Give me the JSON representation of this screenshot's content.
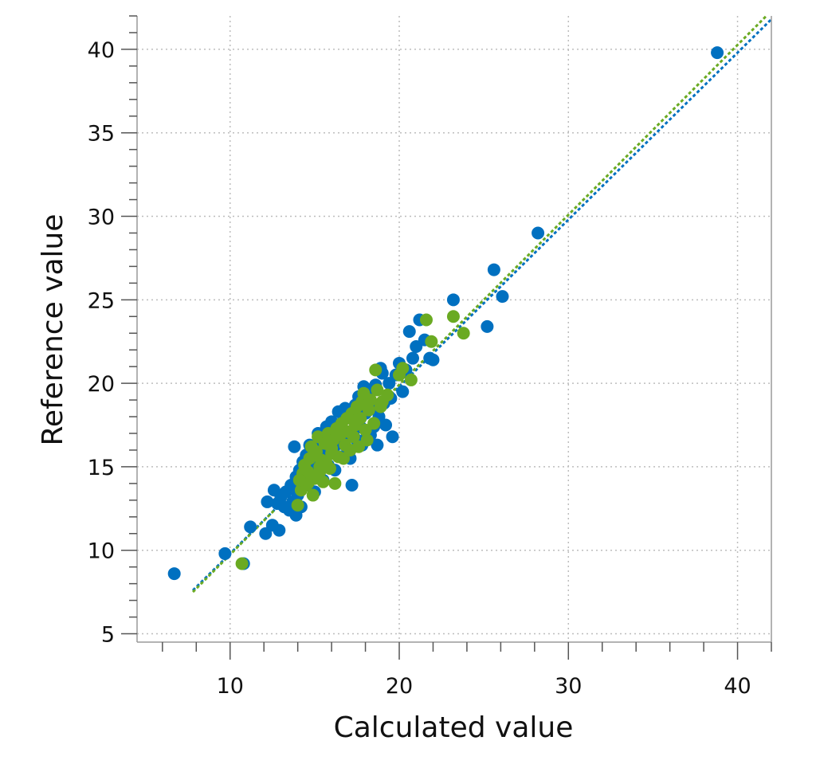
{
  "chart_data": {
    "type": "scatter",
    "title": "",
    "xlabel": "Calculated value",
    "ylabel": "Reference value",
    "xlim": [
      4.5,
      42
    ],
    "ylim": [
      4.5,
      42
    ],
    "x_ticks": [
      10,
      20,
      30,
      40
    ],
    "x_tick_labels": [
      "10",
      "20",
      "30",
      "40"
    ],
    "y_ticks": [
      5,
      10,
      15,
      20,
      25,
      30,
      35,
      40
    ],
    "y_tick_labels": [
      "5",
      "10",
      "15",
      "20",
      "25",
      "30",
      "35",
      "40"
    ],
    "x_minor_step": 2,
    "y_minor_step": 1,
    "grid": true,
    "legend": "none",
    "series": [
      {
        "color": "#0070C0",
        "points": [
          [
            6.7,
            8.6
          ],
          [
            9.7,
            9.8
          ],
          [
            10.8,
            9.2
          ],
          [
            11.2,
            11.4
          ],
          [
            12.1,
            11.0
          ],
          [
            12.2,
            12.9
          ],
          [
            12.5,
            11.5
          ],
          [
            12.6,
            13.6
          ],
          [
            12.8,
            12.8
          ],
          [
            12.9,
            11.2
          ],
          [
            13.0,
            13.2
          ],
          [
            13.2,
            12.6
          ],
          [
            13.3,
            13.5
          ],
          [
            13.5,
            12.4
          ],
          [
            13.6,
            13.9
          ],
          [
            13.7,
            12.9
          ],
          [
            13.8,
            16.2
          ],
          [
            13.9,
            14.4
          ],
          [
            13.9,
            12.1
          ],
          [
            14.0,
            13.3
          ],
          [
            14.1,
            14.8
          ],
          [
            14.2,
            13.7
          ],
          [
            14.3,
            15.3
          ],
          [
            14.4,
            14.0
          ],
          [
            14.5,
            15.7
          ],
          [
            14.6,
            13.9
          ],
          [
            14.7,
            16.3
          ],
          [
            14.8,
            14.6
          ],
          [
            14.9,
            15.0
          ],
          [
            15.0,
            16.1
          ],
          [
            15.1,
            14.4
          ],
          [
            15.2,
            17.0
          ],
          [
            15.3,
            15.3
          ],
          [
            15.4,
            16.5
          ],
          [
            15.5,
            14.2
          ],
          [
            15.6,
            15.8
          ],
          [
            15.7,
            17.4
          ],
          [
            15.8,
            15.1
          ],
          [
            15.9,
            16.3
          ],
          [
            16.0,
            17.7
          ],
          [
            16.1,
            16.0
          ],
          [
            16.2,
            14.8
          ],
          [
            16.3,
            17.2
          ],
          [
            16.4,
            18.3
          ],
          [
            16.5,
            16.4
          ],
          [
            16.6,
            15.6
          ],
          [
            16.7,
            17.8
          ],
          [
            16.8,
            18.5
          ],
          [
            16.9,
            16.9
          ],
          [
            17.0,
            15.9
          ],
          [
            17.1,
            15.5
          ],
          [
            17.2,
            18.0
          ],
          [
            17.3,
            17.1
          ],
          [
            17.4,
            18.7
          ],
          [
            17.5,
            16.6
          ],
          [
            17.6,
            19.2
          ],
          [
            17.7,
            17.4
          ],
          [
            17.8,
            16.3
          ],
          [
            17.9,
            19.8
          ],
          [
            18.0,
            18.2
          ],
          [
            18.1,
            17.0
          ],
          [
            18.2,
            19.4
          ],
          [
            18.3,
            16.9
          ],
          [
            18.4,
            18.6
          ],
          [
            18.5,
            17.4
          ],
          [
            18.6,
            19.9
          ],
          [
            18.7,
            16.3
          ],
          [
            18.8,
            18.0
          ],
          [
            19.0,
            20.6
          ],
          [
            19.1,
            18.8
          ],
          [
            19.2,
            17.5
          ],
          [
            19.4,
            20.0
          ],
          [
            19.5,
            19.1
          ],
          [
            19.6,
            16.8
          ],
          [
            19.8,
            20.5
          ],
          [
            20.0,
            21.2
          ],
          [
            20.2,
            19.5
          ],
          [
            20.4,
            20.8
          ],
          [
            20.6,
            23.1
          ],
          [
            20.8,
            21.5
          ],
          [
            21.0,
            22.2
          ],
          [
            21.2,
            23.8
          ],
          [
            21.5,
            22.6
          ],
          [
            21.8,
            21.5
          ],
          [
            22.0,
            21.4
          ],
          [
            23.2,
            25.0
          ],
          [
            25.2,
            23.4
          ],
          [
            25.6,
            26.8
          ],
          [
            26.1,
            25.2
          ],
          [
            28.2,
            29.0
          ],
          [
            38.8,
            39.8
          ],
          [
            17.2,
            13.9
          ],
          [
            15.0,
            13.5
          ],
          [
            14.2,
            12.6
          ],
          [
            18.9,
            20.9
          ],
          [
            20.1,
            20.6
          ]
        ]
      },
      {
        "color": "#6AAA22",
        "points": [
          [
            10.7,
            9.2
          ],
          [
            14.0,
            12.7
          ],
          [
            14.2,
            13.6
          ],
          [
            14.3,
            14.6
          ],
          [
            14.4,
            15.1
          ],
          [
            14.5,
            13.9
          ],
          [
            14.6,
            14.7
          ],
          [
            14.7,
            15.5
          ],
          [
            14.8,
            16.2
          ],
          [
            14.9,
            13.3
          ],
          [
            15.0,
            14.3
          ],
          [
            15.1,
            15.9
          ],
          [
            15.2,
            16.8
          ],
          [
            15.3,
            14.7
          ],
          [
            15.4,
            15.4
          ],
          [
            15.5,
            14.1
          ],
          [
            15.6,
            16.4
          ],
          [
            15.7,
            15.2
          ],
          [
            15.8,
            17.0
          ],
          [
            15.9,
            14.9
          ],
          [
            16.0,
            15.8
          ],
          [
            16.1,
            16.6
          ],
          [
            16.2,
            14.0
          ],
          [
            16.3,
            17.3
          ],
          [
            16.4,
            15.6
          ],
          [
            16.5,
            16.9
          ],
          [
            16.6,
            17.6
          ],
          [
            16.7,
            15.5
          ],
          [
            16.8,
            16.3
          ],
          [
            16.9,
            17.9
          ],
          [
            17.0,
            17.1
          ],
          [
            17.1,
            16.0
          ],
          [
            17.2,
            18.2
          ],
          [
            17.3,
            16.8
          ],
          [
            17.4,
            17.5
          ],
          [
            17.5,
            18.6
          ],
          [
            17.6,
            16.2
          ],
          [
            17.7,
            17.9
          ],
          [
            17.8,
            18.9
          ],
          [
            17.9,
            19.4
          ],
          [
            18.0,
            17.2
          ],
          [
            18.1,
            16.6
          ],
          [
            18.2,
            18.4
          ],
          [
            18.3,
            19.0
          ],
          [
            18.5,
            17.6
          ],
          [
            18.6,
            20.8
          ],
          [
            18.7,
            19.6
          ],
          [
            18.9,
            18.6
          ],
          [
            19.0,
            18.9
          ],
          [
            19.3,
            19.3
          ],
          [
            20.0,
            20.5
          ],
          [
            20.2,
            20.9
          ],
          [
            20.7,
            20.2
          ],
          [
            21.6,
            23.8
          ],
          [
            21.9,
            22.5
          ],
          [
            23.2,
            24.0
          ],
          [
            23.8,
            23.0
          ],
          [
            14.6,
            14.0
          ],
          [
            15.3,
            15.0
          ],
          [
            16.0,
            16.1
          ],
          [
            14.1,
            14.2
          ],
          [
            17.5,
            17.8
          ]
        ]
      }
    ],
    "trendlines": [
      {
        "color": "#0070C0",
        "x": [
          7.8,
          42
        ],
        "y": [
          7.6,
          41.8
        ]
      },
      {
        "color": "#6AAA22",
        "x": [
          7.8,
          42
        ],
        "y": [
          7.5,
          42.3
        ]
      }
    ]
  }
}
